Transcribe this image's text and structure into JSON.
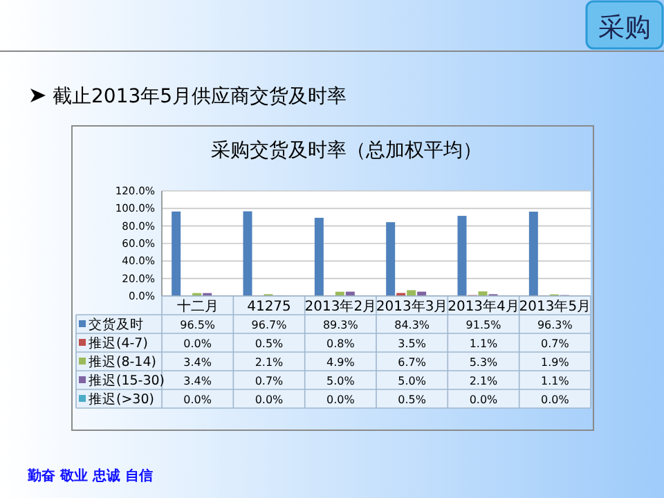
{
  "chart_data": {
    "type": "bar",
    "title": "采购交货及时率（总加权平均）",
    "subtitle": "截止2013年5月供应商交货及时率",
    "annotations": [
      "采购",
      "勤奋 敬业 忠诚 自信"
    ],
    "categories": [
      "十二月",
      "41275",
      "2013年2月",
      "2013年3月",
      "2013年4月",
      "2013年5月"
    ],
    "series": [
      {
        "name": "交货及时",
        "color": "#4f81bd",
        "values": [
          96.5,
          96.7,
          89.3,
          84.3,
          91.5,
          96.3
        ],
        "value_labels": [
          "96.5%",
          "96.7%",
          "89.3%",
          "84.3%",
          "91.5%",
          "96.3%"
        ]
      },
      {
        "name": "推迟(4-7)",
        "color": "#c0504d",
        "values": [
          0.0,
          0.5,
          0.8,
          3.5,
          1.1,
          0.7
        ],
        "value_labels": [
          "0.0%",
          "0.5%",
          "0.8%",
          "3.5%",
          "1.1%",
          "0.7%"
        ]
      },
      {
        "name": "推迟(8-14)",
        "color": "#9bbb59",
        "values": [
          3.4,
          2.1,
          4.9,
          6.7,
          5.3,
          1.9
        ],
        "value_labels": [
          "3.4%",
          "2.1%",
          "4.9%",
          "6.7%",
          "5.3%",
          "1.9%"
        ]
      },
      {
        "name": "推迟(15-30)",
        "color": "#8064a2",
        "values": [
          3.4,
          0.7,
          5.0,
          5.0,
          2.1,
          1.1
        ],
        "value_labels": [
          "3.4%",
          "0.7%",
          "5.0%",
          "5.0%",
          "2.1%",
          "1.1%"
        ]
      },
      {
        "name": "推迟(>30)",
        "color": "#4bacc6",
        "values": [
          0.0,
          0.0,
          0.0,
          0.5,
          0.0,
          0.0
        ],
        "value_labels": [
          "0.0%",
          "0.0%",
          "0.0%",
          "0.5%",
          "0.0%",
          "0.0%"
        ]
      }
    ],
    "ylim": [
      0,
      120
    ],
    "yticks": [
      {
        "value": 0,
        "label": "0.0%"
      },
      {
        "value": 20,
        "label": "20.0%"
      },
      {
        "value": 40,
        "label": "40.0%"
      },
      {
        "value": 60,
        "label": "60.0%"
      },
      {
        "value": 80,
        "label": "80.0%"
      },
      {
        "value": 100,
        "label": "100.0%"
      },
      {
        "value": 120,
        "label": "120.0%"
      }
    ],
    "grid": "y",
    "legend": "bottom"
  }
}
